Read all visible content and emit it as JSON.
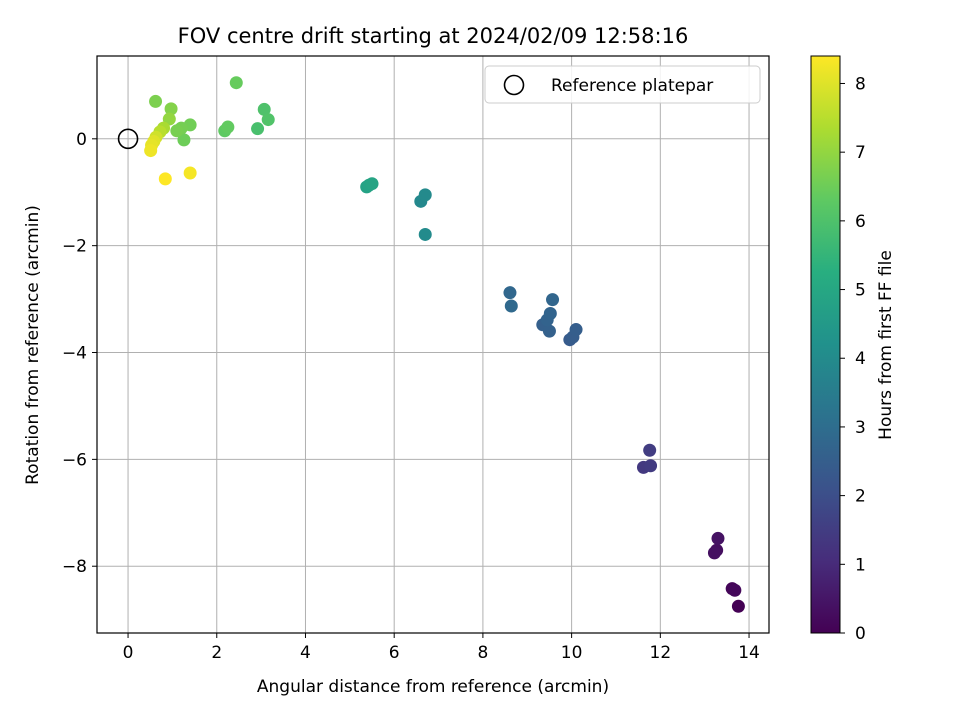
{
  "chart_data": {
    "type": "scatter",
    "title": "FOV centre drift starting at 2024/02/09 12:58:16",
    "xlabel": "Angular distance from reference (arcmin)",
    "ylabel": "Rotation from reference (arcmin)",
    "xlim": [
      -0.7,
      14.45
    ],
    "ylim": [
      -9.25,
      1.55
    ],
    "xticks": [
      0,
      2,
      4,
      6,
      8,
      10,
      12,
      14
    ],
    "yticks": [
      0,
      -2,
      -4,
      -6,
      -8
    ],
    "grid": true,
    "legend": {
      "placement": "top-right",
      "entries": [
        "Reference platepar"
      ]
    },
    "reference_point": {
      "x": 0,
      "y": 0
    },
    "colorbar": {
      "label": "Hours from first FF file",
      "colormap": "viridis",
      "range": [
        0,
        8.4
      ],
      "ticks": [
        0,
        1,
        2,
        3,
        4,
        5,
        6,
        7,
        8
      ]
    },
    "points": [
      {
        "x": 13.76,
        "y": -8.75,
        "h": 0.0
      },
      {
        "x": 13.62,
        "y": -8.42,
        "h": 0.1
      },
      {
        "x": 13.68,
        "y": -8.45,
        "h": 0.15
      },
      {
        "x": 13.27,
        "y": -7.7,
        "h": 0.3
      },
      {
        "x": 13.22,
        "y": -7.75,
        "h": 0.35
      },
      {
        "x": 13.3,
        "y": -7.48,
        "h": 0.4
      },
      {
        "x": 11.62,
        "y": -6.15,
        "h": 1.4
      },
      {
        "x": 11.78,
        "y": -6.12,
        "h": 1.45
      },
      {
        "x": 11.76,
        "y": -5.83,
        "h": 1.5
      },
      {
        "x": 9.96,
        "y": -3.76,
        "h": 2.4
      },
      {
        "x": 10.03,
        "y": -3.71,
        "h": 2.45
      },
      {
        "x": 10.1,
        "y": -3.57,
        "h": 2.5
      },
      {
        "x": 9.35,
        "y": -3.48,
        "h": 2.55
      },
      {
        "x": 9.5,
        "y": -3.6,
        "h": 2.6
      },
      {
        "x": 9.45,
        "y": -3.39,
        "h": 2.65
      },
      {
        "x": 9.52,
        "y": -3.27,
        "h": 2.7
      },
      {
        "x": 9.57,
        "y": -3.01,
        "h": 2.75
      },
      {
        "x": 8.61,
        "y": -2.88,
        "h": 2.8
      },
      {
        "x": 8.64,
        "y": -3.13,
        "h": 2.85
      },
      {
        "x": 6.6,
        "y": -1.17,
        "h": 3.9
      },
      {
        "x": 6.7,
        "y": -1.05,
        "h": 3.95
      },
      {
        "x": 6.7,
        "y": -1.79,
        "h": 4.0
      },
      {
        "x": 5.38,
        "y": -0.9,
        "h": 4.8
      },
      {
        "x": 5.43,
        "y": -0.87,
        "h": 4.85
      },
      {
        "x": 5.5,
        "y": -0.84,
        "h": 4.9
      },
      {
        "x": 2.92,
        "y": 0.19,
        "h": 5.9
      },
      {
        "x": 3.07,
        "y": 0.55,
        "h": 6.0
      },
      {
        "x": 3.16,
        "y": 0.36,
        "h": 6.05
      },
      {
        "x": 2.18,
        "y": 0.15,
        "h": 6.3
      },
      {
        "x": 2.25,
        "y": 0.22,
        "h": 6.35
      },
      {
        "x": 2.44,
        "y": 1.05,
        "h": 6.4
      },
      {
        "x": 1.26,
        "y": -0.02,
        "h": 6.5
      },
      {
        "x": 1.4,
        "y": 0.26,
        "h": 6.55
      },
      {
        "x": 1.2,
        "y": 0.2,
        "h": 6.6
      },
      {
        "x": 1.1,
        "y": 0.15,
        "h": 6.65
      },
      {
        "x": 0.62,
        "y": 0.7,
        "h": 6.7
      },
      {
        "x": 0.97,
        "y": 0.56,
        "h": 6.8
      },
      {
        "x": 0.93,
        "y": 0.37,
        "h": 7.0
      },
      {
        "x": 0.8,
        "y": 0.2,
        "h": 7.3
      },
      {
        "x": 0.72,
        "y": 0.13,
        "h": 7.5
      },
      {
        "x": 0.63,
        "y": 0.03,
        "h": 7.8
      },
      {
        "x": 0.58,
        "y": -0.05,
        "h": 8.0
      },
      {
        "x": 0.53,
        "y": -0.12,
        "h": 8.1
      },
      {
        "x": 0.51,
        "y": -0.22,
        "h": 8.2
      },
      {
        "x": 1.4,
        "y": -0.64,
        "h": 8.3
      },
      {
        "x": 0.84,
        "y": -0.75,
        "h": 8.4
      }
    ]
  }
}
